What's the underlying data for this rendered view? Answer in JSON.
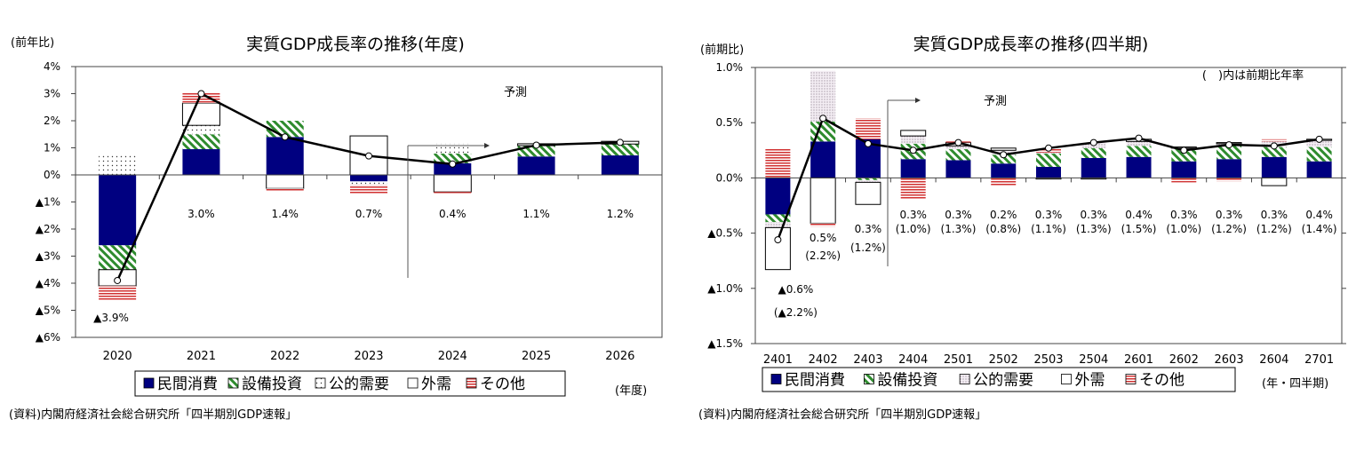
{
  "colors": {
    "consumption": "#000080",
    "equipment": "#2e8b2e",
    "public": "#808080",
    "external": "#ffffff",
    "other": "#d03030",
    "line": "#000000"
  },
  "chart_data": [
    {
      "type": "bar",
      "stacked": true,
      "title": "実質GDP成長率の推移(年度)",
      "ylabel": "(前年比)",
      "xlabel": "(年度)",
      "source": "(資料)内閣府経済社会総合研究所「四半期別GDP速報」",
      "forecast_label": "予測",
      "ylim": [
        -6,
        4
      ],
      "yticks": [
        4,
        3,
        2,
        1,
        0,
        -1,
        -2,
        -3,
        -4,
        -5,
        -6
      ],
      "ytick_labels": [
        "4%",
        "3%",
        "2%",
        "1%",
        "0%",
        "▲1%",
        "▲2%",
        "▲3%",
        "▲4%",
        "▲5%",
        "▲6%"
      ],
      "categories": [
        "2020",
        "2021",
        "2022",
        "2023",
        "2024",
        "2025",
        "2026"
      ],
      "forecast_start_index": 4,
      "legend_position": "bottom",
      "series": [
        {
          "name": "民間消費",
          "key": "consumption",
          "values": [
            -2.6,
            0.95,
            1.4,
            -0.24,
            0.43,
            0.68,
            0.72
          ]
        },
        {
          "name": "設備投資",
          "key": "equipment",
          "values": [
            -0.9,
            0.55,
            0.6,
            0,
            0.36,
            0.4,
            0.42
          ]
        },
        {
          "name": "公的需要",
          "key": "public",
          "values": [
            0.8,
            0.33,
            0,
            -0.13,
            0.36,
            0,
            0
          ]
        },
        {
          "name": "外需",
          "key": "external",
          "values": [
            -0.6,
            0.82,
            -0.5,
            1.44,
            -0.63,
            0.07,
            0.1
          ]
        },
        {
          "name": "その他",
          "key": "other",
          "values": [
            -0.55,
            0.39,
            -0.1,
            -0.35,
            -0.05,
            -0.03,
            -0.03
          ]
        }
      ],
      "gdp": {
        "values": [
          -3.9,
          3.0,
          1.4,
          0.7,
          0.4,
          1.1,
          1.2
        ],
        "labels": [
          "▲3.9%",
          "3.0%",
          "1.4%",
          "0.7%",
          "0.4%",
          "1.1%",
          "1.2%"
        ]
      }
    },
    {
      "type": "bar",
      "stacked": true,
      "title": "実質GDP成長率の推移(四半期)",
      "ylabel": "(前期比)",
      "xlabel": "(年・四半期)",
      "source": "(資料)内閣府経済社会総合研究所「四半期別GDP速報」",
      "forecast_label": "予測",
      "note": "(　)内は前期比年率",
      "ylim": [
        -1.5,
        1.0
      ],
      "yticks": [
        1.0,
        0.5,
        0,
        -0.5,
        -1.0,
        -1.5
      ],
      "ytick_labels": [
        "1.0%",
        "0.5%",
        "0.0%",
        "▲0.5%",
        "▲1.0%",
        "▲1.5%"
      ],
      "categories": [
        "2401",
        "2402",
        "2403",
        "2404",
        "2501",
        "2502",
        "2503",
        "2504",
        "2601",
        "2602",
        "2603",
        "2604",
        "2701"
      ],
      "forecast_start_index": 3,
      "legend_position": "bottom",
      "series": [
        {
          "name": "民間消費",
          "key": "consumption",
          "values": [
            -0.33,
            0.33,
            0.35,
            0.17,
            0.16,
            0.13,
            0.1,
            0.18,
            0.19,
            0.15,
            0.17,
            0.19,
            0.15
          ]
        },
        {
          "name": "設備投資",
          "key": "equipment",
          "values": [
            -0.07,
            0.18,
            -0.02,
            0.14,
            0.1,
            0.08,
            0.12,
            0.09,
            0.1,
            0.11,
            0.12,
            0.09,
            0.13
          ]
        },
        {
          "name": "公的需要",
          "key": "public",
          "values": [
            -0.05,
            0.46,
            -0.02,
            0.07,
            0.03,
            0.04,
            0.01,
            0.05,
            0.04,
            0.01,
            0.02,
            0.05,
            0.06
          ]
        },
        {
          "name": "外需",
          "key": "external",
          "values": [
            -0.38,
            -0.41,
            -0.2,
            0.05,
            0.03,
            0.02,
            -0.01,
            -0.01,
            0.02,
            0.01,
            0.01,
            -0.07,
            0.01
          ]
        },
        {
          "name": "その他",
          "key": "other",
          "values": [
            0.27,
            -0.03,
            0.19,
            -0.19,
            0.01,
            -0.07,
            0.04,
            0.0,
            0.0,
            -0.04,
            -0.03,
            0.02,
            0.0
          ]
        }
      ],
      "gdp": {
        "values": [
          -0.56,
          0.54,
          0.31,
          0.25,
          0.32,
          0.21,
          0.27,
          0.32,
          0.36,
          0.25,
          0.3,
          0.29,
          0.35
        ],
        "labels": [
          "▲0.6%",
          "0.5%",
          "0.3%",
          "0.3%",
          "0.3%",
          "0.2%",
          "0.3%",
          "0.3%",
          "0.4%",
          "0.3%",
          "0.3%",
          "0.3%",
          "0.4%"
        ],
        "annualized": [
          "(▲2.2%)",
          "(2.2%)",
          "(1.2%)",
          "(1.0%)",
          "(1.3%)",
          "(0.8%)",
          "(1.1%)",
          "(1.3%)",
          "(1.5%)",
          "(1.0%)",
          "(1.2%)",
          "(1.2%)",
          "(1.4%)"
        ]
      }
    }
  ]
}
